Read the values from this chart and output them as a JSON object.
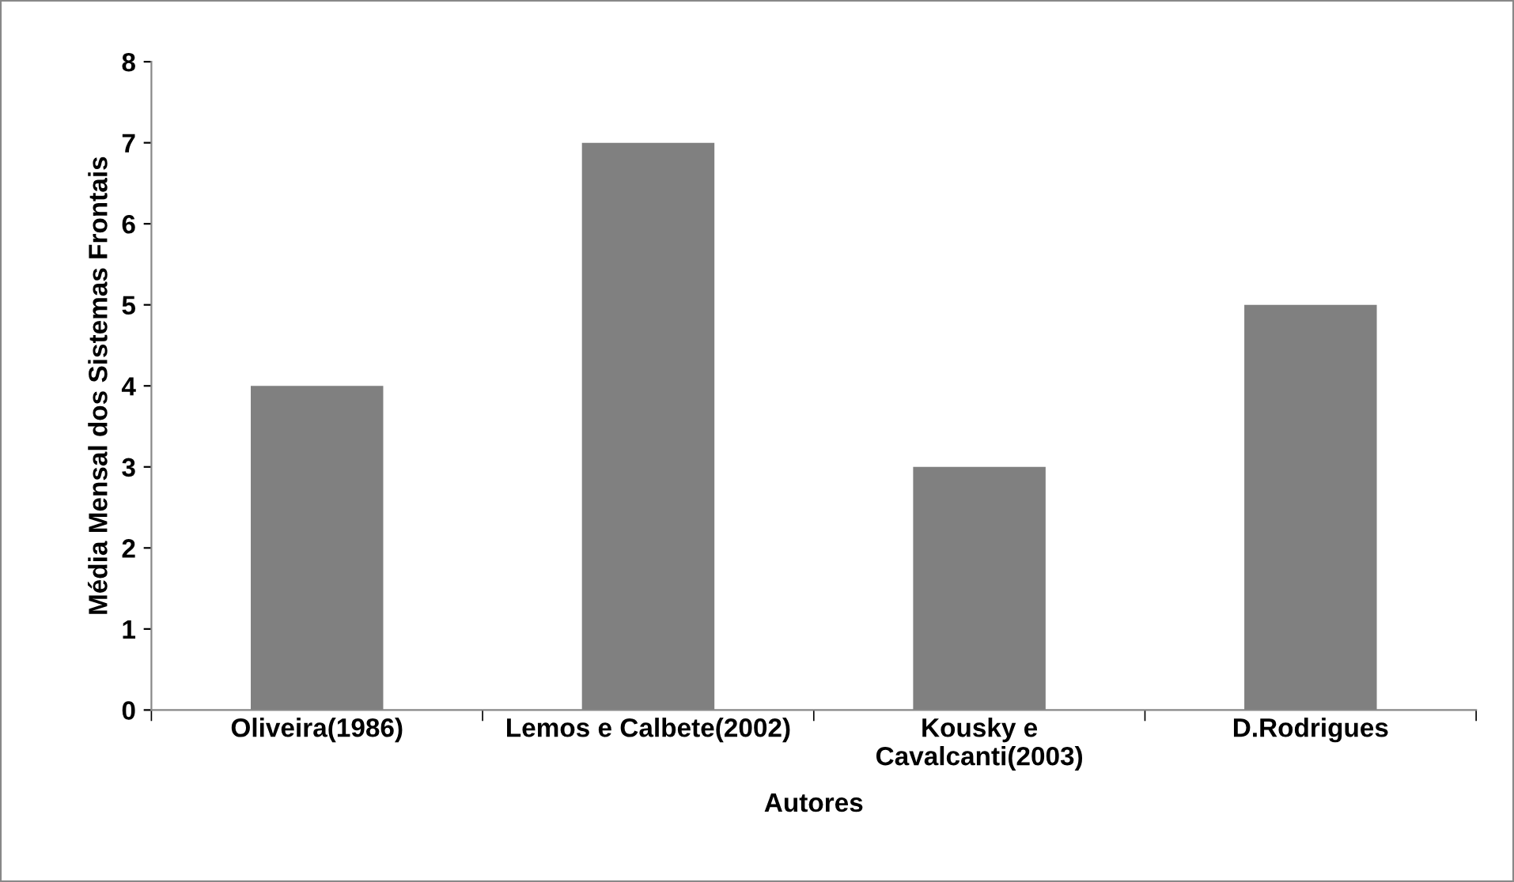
{
  "chart_data": {
    "type": "bar",
    "xlabel": "Autores",
    "ylabel": "Média Mensal dos Sistemas Frontais",
    "categories": [
      "Oliveira(1986)",
      "Lemos e Calbete(2002)",
      "Kousky e\nCavalcanti(2003)",
      "D.Rodrigues"
    ],
    "values": [
      4,
      7,
      3,
      5
    ],
    "color": "#808080",
    "ylim": [
      0,
      8
    ],
    "yticks": [
      0,
      1,
      2,
      3,
      4,
      5,
      6,
      7,
      8
    ],
    "grid": false,
    "legend": false
  }
}
